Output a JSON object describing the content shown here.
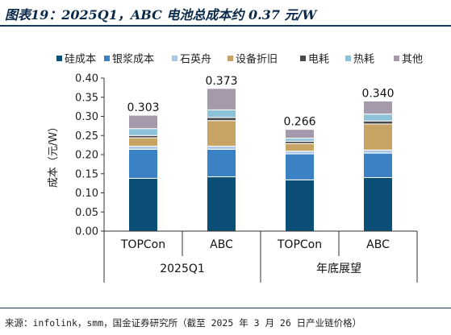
{
  "header": {
    "title": "图表19：2025Q1，ABC 电池总成本约 0.37 元/W"
  },
  "footer": {
    "source": "来源：infolink，smm，国金证券研究所（截至 2025 年 3 月 26 日产业链价格）"
  },
  "colors": {
    "硅成本": "#0b4f76",
    "银浆成本": "#3b82c4",
    "石英舟": "#a9c7e6",
    "设备折旧": "#c7a364",
    "电耗": "#4a4a4a",
    "热耗": "#8ec2d8",
    "其他": "#a49aac"
  },
  "chart_data": {
    "type": "bar",
    "stacked": true,
    "ylabel": "成本（元/W）",
    "ylim": [
      0,
      0.4
    ],
    "yticks": [
      "0.00",
      "0.05",
      "0.10",
      "0.15",
      "0.20",
      "0.25",
      "0.30",
      "0.35",
      "0.40"
    ],
    "grid": false,
    "legend_position": "top",
    "categories": [
      "TOPCon",
      "ABC",
      "TOPCon",
      "ABC"
    ],
    "groups": [
      {
        "label": "2025Q1",
        "categories": [
          0,
          1
        ]
      },
      {
        "label": "年底展望",
        "categories": [
          2,
          3
        ]
      }
    ],
    "totals": [
      0.303,
      0.373,
      0.266,
      0.34
    ],
    "total_labels": [
      "0.303",
      "0.373",
      "0.266",
      "0.340"
    ],
    "series": [
      {
        "name": "硅成本",
        "values": [
          0.138,
          0.142,
          0.134,
          0.14
        ]
      },
      {
        "name": "银浆成本",
        "values": [
          0.076,
          0.072,
          0.068,
          0.064
        ]
      },
      {
        "name": "石英舟",
        "values": [
          0.008,
          0.008,
          0.007,
          0.008
        ]
      },
      {
        "name": "设备折旧",
        "values": [
          0.022,
          0.067,
          0.02,
          0.068
        ]
      },
      {
        "name": "电耗",
        "values": [
          0.006,
          0.008,
          0.006,
          0.008
        ]
      },
      {
        "name": "热耗",
        "values": [
          0.018,
          0.02,
          0.008,
          0.018
        ]
      },
      {
        "name": "其他",
        "values": [
          0.035,
          0.056,
          0.023,
          0.034
        ]
      }
    ]
  }
}
